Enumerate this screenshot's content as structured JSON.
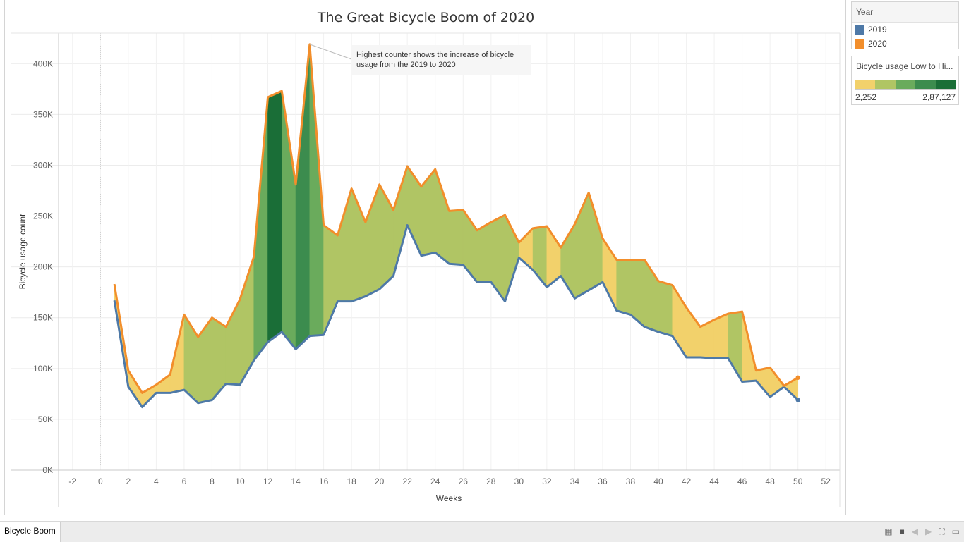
{
  "chart_data": {
    "type": "area",
    "title": "The Great Bicycle Boom of 2020",
    "xlabel": "Weeks",
    "ylabel": "Bicycle usage count",
    "xlim": [
      -3,
      53
    ],
    "ylim": [
      0,
      430000
    ],
    "x_ticks": [
      -2,
      0,
      2,
      4,
      6,
      8,
      10,
      12,
      14,
      16,
      18,
      20,
      22,
      24,
      26,
      28,
      30,
      32,
      34,
      36,
      38,
      40,
      42,
      44,
      46,
      48,
      50,
      52
    ],
    "x_tick_labels": [
      "-2",
      "0",
      "2",
      "4",
      "6",
      "8",
      "10",
      "12",
      "14",
      "16",
      "18",
      "20",
      "22",
      "24",
      "26",
      "28",
      "30",
      "32",
      "34",
      "36",
      "38",
      "40",
      "42",
      "44",
      "46",
      "48",
      "50",
      "52"
    ],
    "y_ticks": [
      0,
      50000,
      100000,
      150000,
      200000,
      250000,
      300000,
      350000,
      400000
    ],
    "y_tick_labels": [
      "0K",
      "50K",
      "100K",
      "150K",
      "200K",
      "250K",
      "300K",
      "350K",
      "400K"
    ],
    "grid": true,
    "series": [
      {
        "name": "2019",
        "color": "#4e79a7",
        "x": [
          1,
          2,
          3,
          4,
          5,
          6,
          7,
          8,
          9,
          10,
          11,
          12,
          13,
          14,
          15,
          16,
          17,
          18,
          19,
          20,
          21,
          22,
          23,
          24,
          25,
          26,
          27,
          28,
          29,
          30,
          31,
          32,
          33,
          34,
          35,
          36,
          37,
          38,
          39,
          40,
          41,
          42,
          43,
          44,
          45,
          46,
          47,
          48,
          49,
          50
        ],
        "values": [
          167000,
          82000,
          62000,
          76000,
          76000,
          79000,
          66000,
          69000,
          85000,
          84000,
          108000,
          126000,
          136000,
          119000,
          132000,
          133000,
          166000,
          166000,
          171000,
          178000,
          191000,
          241000,
          211000,
          214000,
          203000,
          202000,
          185000,
          185000,
          166000,
          209000,
          197000,
          180000,
          191000,
          169000,
          177000,
          185000,
          157000,
          153000,
          141000,
          136000,
          132000,
          111000,
          111000,
          110000,
          110000,
          87000,
          88000,
          72000,
          82000,
          69000
        ]
      },
      {
        "name": "2020",
        "color": "#f28e2b",
        "x": [
          1,
          2,
          3,
          4,
          5,
          6,
          7,
          8,
          9,
          10,
          11,
          12,
          13,
          14,
          15,
          16,
          17,
          18,
          19,
          20,
          21,
          22,
          23,
          24,
          25,
          26,
          27,
          28,
          29,
          30,
          31,
          32,
          33,
          34,
          35,
          36,
          37,
          38,
          39,
          40,
          41,
          42,
          43,
          44,
          45,
          46,
          47,
          48,
          49,
          50
        ],
        "values": [
          183000,
          98000,
          76000,
          84000,
          94000,
          153000,
          131000,
          150000,
          141000,
          168000,
          210000,
          367000,
          373000,
          281000,
          419000,
          241000,
          231000,
          277000,
          244000,
          281000,
          256000,
          299000,
          279000,
          296000,
          255000,
          256000,
          236000,
          244000,
          251000,
          224000,
          238000,
          240000,
          219000,
          242000,
          273000,
          228000,
          207000,
          207000,
          207000,
          186000,
          182000,
          160000,
          141000,
          148000,
          154000,
          156000,
          98000,
          101000,
          83000,
          91000
        ]
      }
    ],
    "band_color_bins": [
      "#f2d16b",
      "#b0c564",
      "#6aab5c",
      "#3c8c4e",
      "#1a6e37"
    ],
    "annotation": {
      "x": 15,
      "y": 419000,
      "text_lines": [
        "Highest counter shows the increase of bicycle",
        "usage from the 2019 to 2020"
      ]
    }
  },
  "legend_year": {
    "title": "Year",
    "items": [
      {
        "label": "2019",
        "color": "#4e79a7"
      },
      {
        "label": "2020",
        "color": "#f28e2b"
      }
    ]
  },
  "legend_color": {
    "title": "Bicycle usage Low to Hi...",
    "min_label": "2,252",
    "max_label": "2,87,127",
    "colors": [
      "#f2d16b",
      "#b0c564",
      "#6aab5c",
      "#3c8c4e",
      "#1a6e37"
    ]
  },
  "tabs": {
    "active": "Bicycle Boom"
  }
}
